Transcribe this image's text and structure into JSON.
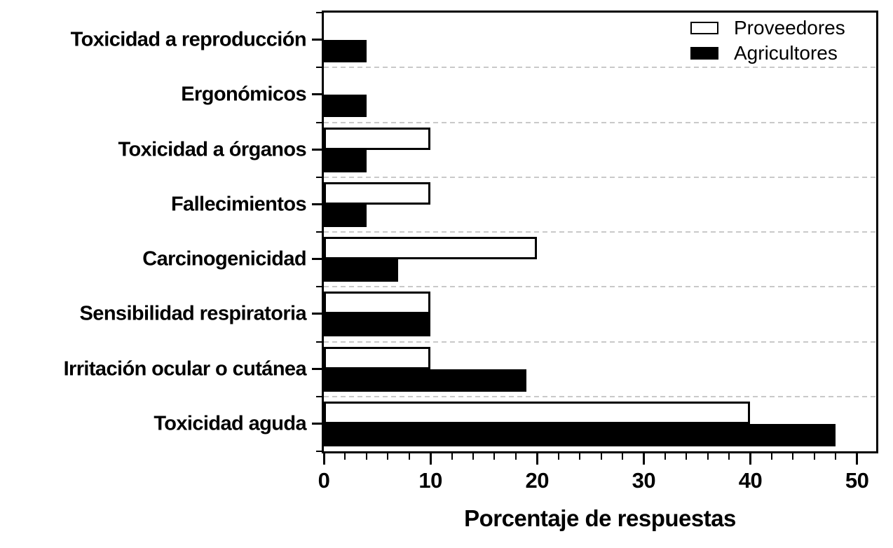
{
  "chart_data": {
    "type": "bar",
    "orientation": "horizontal",
    "xlabel": "Porcentaje de respuestas",
    "categories_top_to_bottom": [
      "Toxicidad a reproducción",
      "Ergonómicos",
      "Toxicidad a órganos",
      "Fallecimientos",
      "Carcinogenicidad",
      "Sensibilidad respiratoria",
      "Irritación ocular o cutánea",
      "Toxicidad aguda"
    ],
    "series": [
      {
        "name": "Proveedores",
        "fill": "#ffffff",
        "values": [
          0,
          0,
          10,
          10,
          20,
          10,
          10,
          40
        ]
      },
      {
        "name": "Agricultores",
        "fill": "#000000",
        "values": [
          4,
          4,
          4,
          4,
          7,
          10,
          19,
          48
        ]
      }
    ],
    "x_axis": {
      "min": 0,
      "max": 51.8,
      "major_ticks": [
        0,
        10,
        20,
        30,
        40,
        50
      ],
      "minor_tick_step": 2
    },
    "legend_position": "top-right",
    "grid": "horizontal dashed lines at category boundaries",
    "colors": {
      "axis": "#000000",
      "grid": "#c9c9c9",
      "background": "#ffffff",
      "bar_border": "#000000"
    }
  }
}
